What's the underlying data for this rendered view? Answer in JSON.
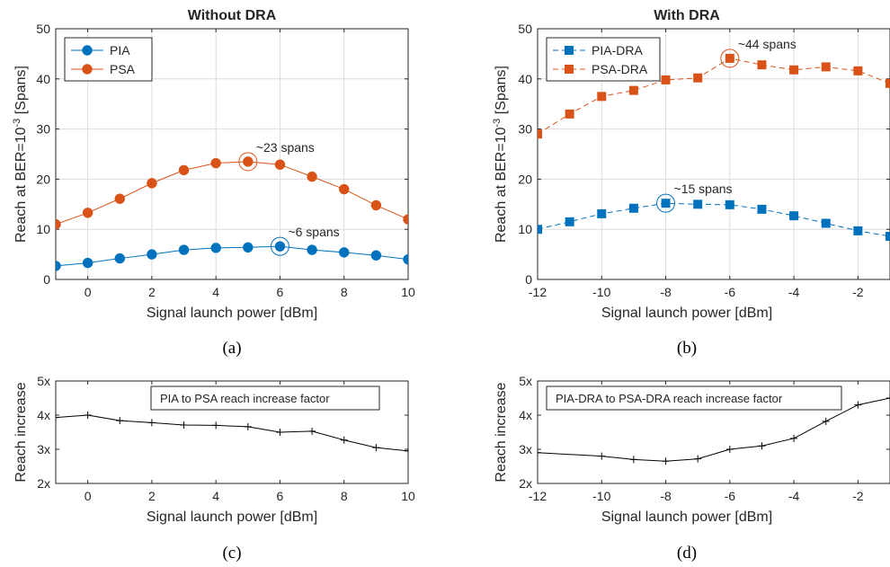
{
  "chart_data": [
    {
      "id": "a",
      "type": "line",
      "caption": "(a)",
      "title": "Without DRA",
      "xlabel": "Signal launch power [dBm]",
      "ylabel": "Reach at BER=10^{-3} [Spans]",
      "xlim": [
        -1,
        10
      ],
      "ylim": [
        0,
        50
      ],
      "xticks": [
        0,
        2,
        4,
        6,
        8,
        10
      ],
      "yticks": [
        0,
        10,
        20,
        30,
        40,
        50
      ],
      "grid": true,
      "legend_position": "top-left",
      "x": [
        -1,
        0,
        1,
        2,
        3,
        4,
        5,
        6,
        7,
        8,
        9,
        10
      ],
      "series": [
        {
          "name": "PIA",
          "color": "#0072BD",
          "marker": "circle",
          "dashed": false,
          "values": [
            2.7,
            3.3,
            4.2,
            5.0,
            5.9,
            6.3,
            6.4,
            6.6,
            5.9,
            5.4,
            4.8,
            4.0
          ]
        },
        {
          "name": "PSA",
          "color": "#D95319",
          "marker": "circle",
          "dashed": false,
          "values": [
            11.0,
            13.3,
            16.1,
            19.2,
            21.8,
            23.2,
            23.5,
            22.9,
            20.5,
            18.0,
            14.8,
            12.0
          ]
        }
      ],
      "annotations": [
        {
          "text": "~23 spans",
          "x": 5,
          "y": 23.5,
          "color": "#D95319"
        },
        {
          "text": "~6 spans",
          "x": 6,
          "y": 6.6,
          "color": "#0072BD"
        }
      ]
    },
    {
      "id": "b",
      "type": "line",
      "caption": "(b)",
      "title": "With DRA",
      "xlabel": "Signal launch power [dBm]",
      "ylabel": "Reach at BER=10^{-3} [Spans]",
      "xlim": [
        -12,
        -1
      ],
      "ylim": [
        0,
        50
      ],
      "xticks": [
        -12,
        -10,
        -8,
        -6,
        -4,
        -2
      ],
      "yticks": [
        0,
        10,
        20,
        30,
        40,
        50
      ],
      "grid": true,
      "legend_position": "top-left",
      "x": [
        -12,
        -11,
        -10,
        -9,
        -8,
        -7,
        -6,
        -5,
        -4,
        -3,
        -2,
        -1
      ],
      "series": [
        {
          "name": "PIA-DRA",
          "color": "#0072BD",
          "marker": "square",
          "dashed": true,
          "values": [
            10.0,
            11.5,
            13.1,
            14.2,
            15.2,
            15.0,
            14.9,
            14.0,
            12.7,
            11.2,
            9.7,
            8.6
          ]
        },
        {
          "name": "PSA-DRA",
          "color": "#D95319",
          "marker": "square",
          "dashed": true,
          "values": [
            29.0,
            33.0,
            36.5,
            37.7,
            39.8,
            40.2,
            44.1,
            42.8,
            41.8,
            42.4,
            41.6,
            39.1
          ]
        }
      ],
      "annotations": [
        {
          "text": "~44 spans",
          "x": -6,
          "y": 44.1,
          "color": "#D95319"
        },
        {
          "text": "~15 spans",
          "x": -8,
          "y": 15.2,
          "color": "#0072BD"
        }
      ]
    },
    {
      "id": "c",
      "type": "line",
      "caption": "(c)",
      "xlabel": "Signal launch power [dBm]",
      "ylabel": "Reach increase",
      "xlim": [
        -1,
        10
      ],
      "ylim": [
        2,
        5
      ],
      "xticks": [
        0,
        2,
        4,
        6,
        8,
        10
      ],
      "yticks": [
        2,
        3,
        4,
        5
      ],
      "ytick_labels": [
        "2x",
        "3x",
        "4x",
        "5x"
      ],
      "grid": false,
      "legend_position": "top-right",
      "legend_text": "PIA to PSA reach increase factor",
      "x": [
        -1,
        0,
        1,
        2,
        3,
        4,
        5,
        6,
        7,
        8,
        9,
        10
      ],
      "series": [
        {
          "name": "PIA to PSA reach increase factor",
          "color": "#000000",
          "marker": "plus",
          "dashed": false,
          "values": [
            3.93,
            4.0,
            3.84,
            3.78,
            3.71,
            3.7,
            3.66,
            3.5,
            3.53,
            3.27,
            3.05,
            2.95
          ]
        }
      ]
    },
    {
      "id": "d",
      "type": "line",
      "caption": "(d)",
      "xlabel": "Signal launch power [dBm]",
      "ylabel": "Reach increase",
      "xlim": [
        -12,
        -1
      ],
      "ylim": [
        2,
        5
      ],
      "xticks": [
        -12,
        -10,
        -8,
        -6,
        -4,
        -2
      ],
      "yticks": [
        2,
        3,
        4,
        5
      ],
      "ytick_labels": [
        "2x",
        "3x",
        "4x",
        "5x"
      ],
      "grid": false,
      "legend_position": "top-left",
      "legend_text": "PIA-DRA to PSA-DRA reach increase factor",
      "x": [
        -12,
        -10,
        -9,
        -8,
        -7,
        -6,
        -5,
        -4,
        -3,
        -2,
        -1
      ],
      "series": [
        {
          "name": "PIA-DRA to PSA-DRA reach increase factor",
          "color": "#000000",
          "marker": "plus",
          "dashed": false,
          "values": [
            2.9,
            2.8,
            2.7,
            2.65,
            2.72,
            3.0,
            3.1,
            3.32,
            3.82,
            4.3,
            4.5
          ]
        }
      ]
    }
  ]
}
